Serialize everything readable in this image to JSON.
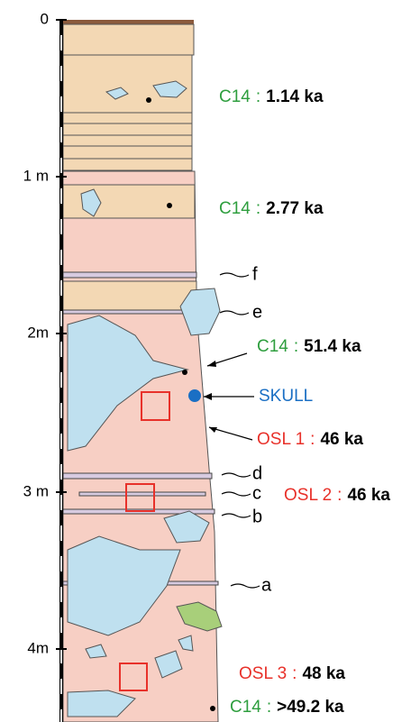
{
  "depth_labels": [
    "0",
    "1 m",
    "2m",
    "3 m",
    "4m"
  ],
  "layer_labels": [
    "f",
    "e",
    "d",
    "c",
    "b",
    "a"
  ],
  "separator": ":",
  "samples": [
    {
      "method": "C14",
      "age": "1.14 ka"
    },
    {
      "method": "C14",
      "age": "2.77 ka"
    },
    {
      "method": "C14",
      "age": "51.4 ka"
    },
    {
      "method": "OSL 1",
      "age": "46 ka"
    },
    {
      "method": "OSL 2",
      "age": "46 ka"
    },
    {
      "method": "OSL 3",
      "age": "48 ka"
    },
    {
      "method": "C14",
      "age": ">49.2 ka"
    }
  ],
  "skull_label": "SKULL"
}
